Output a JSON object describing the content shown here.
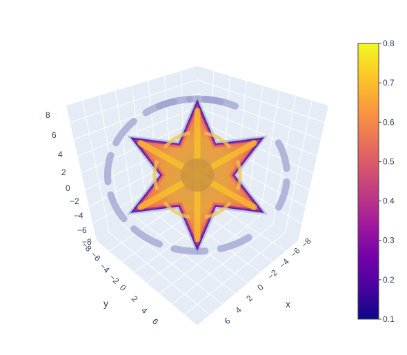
{
  "chart_data": {
    "type": "volume",
    "title": "",
    "axes": {
      "x": {
        "label": "x",
        "ticks": [
          "−8",
          "−6",
          "−4",
          "−2",
          "0",
          "2",
          "4",
          "6"
        ]
      },
      "y": {
        "label": "y",
        "ticks": [
          "−8",
          "−6",
          "−4",
          "−2",
          "0",
          "2",
          "4",
          "6"
        ]
      },
      "z": {
        "label": "",
        "ticks": [
          "8",
          "6",
          "4",
          "2",
          "0",
          "−2",
          "−4",
          "−6",
          "−8"
        ]
      }
    },
    "colorbar": {
      "min": 0.1,
      "max": 0.8,
      "ticks": [
        "0.8",
        "0.7",
        "0.6",
        "0.5",
        "0.4",
        "0.3",
        "0.2",
        "0.1"
      ],
      "tick_values": [
        0.8,
        0.7,
        0.6,
        0.5,
        0.4,
        0.3,
        0.2,
        0.1
      ],
      "colorscale": [
        "#0d0887",
        "#46039f",
        "#7201a8",
        "#9c179e",
        "#bd3786",
        "#d8576b",
        "#ed7953",
        "#fb9f3a",
        "#fdca26",
        "#f0f921"
      ]
    },
    "colors": {
      "scene_bg": "#e5ecf6",
      "grid": "#ffffff",
      "text": "#2a3f5f",
      "isosurface_low": "#9ea3cf"
    }
  }
}
